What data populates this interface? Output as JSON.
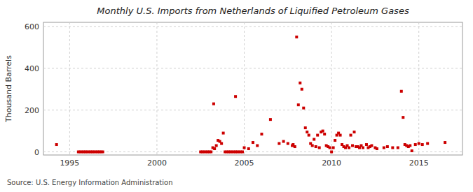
{
  "chart_data": {
    "type": "scatter",
    "title": "Monthly U.S. Imports from Netherlands of Liquified Petroleum Gases",
    "ylabel": "Thousand Barrels",
    "source": "Source: U.S. Energy Information Administration",
    "color": "#cc0000",
    "marker": "square",
    "grid": true,
    "xlim": [
      1993.5,
      2017.5
    ],
    "ylim": [
      -15,
      620
    ],
    "xticks": [
      1995,
      2000,
      2005,
      2010,
      2015
    ],
    "yticks": [
      0,
      200,
      400,
      600
    ],
    "x": [
      1994.25,
      1995.5,
      1995.6,
      1995.7,
      1995.8,
      1995.9,
      1996.0,
      1996.1,
      1996.2,
      1996.3,
      1996.4,
      1996.5,
      1996.6,
      1996.7,
      1996.8,
      1996.9,
      2002.5,
      2002.6,
      2002.7,
      2002.8,
      2002.9,
      2003.0,
      2003.1,
      2003.2,
      2003.3,
      2003.4,
      2003.5,
      2003.6,
      2003.7,
      2003.8,
      2003.9,
      2004.0,
      2004.1,
      2004.2,
      2004.3,
      2004.4,
      2004.5,
      2004.6,
      2004.7,
      2004.8,
      2004.9,
      2003.25,
      2004.5,
      2005.0,
      2005.25,
      2005.5,
      2005.75,
      2006.0,
      2006.5,
      2007.0,
      2007.25,
      2007.5,
      2007.75,
      2007.8,
      2007.9,
      2008.0,
      2008.1,
      2008.2,
      2008.3,
      2008.4,
      2008.5,
      2008.6,
      2008.7,
      2008.8,
      2008.9,
      2009.0,
      2009.1,
      2009.2,
      2009.3,
      2009.4,
      2009.5,
      2009.6,
      2009.7,
      2009.8,
      2009.9,
      2010.0,
      2010.1,
      2010.2,
      2010.3,
      2010.4,
      2010.5,
      2010.6,
      2010.7,
      2010.8,
      2010.9,
      2011.0,
      2011.1,
      2011.2,
      2011.3,
      2011.4,
      2011.5,
      2011.6,
      2011.7,
      2011.8,
      2012.0,
      2012.1,
      2012.2,
      2012.3,
      2012.5,
      2012.6,
      2013.0,
      2013.2,
      2013.5,
      2013.8,
      2014.0,
      2014.1,
      2014.2,
      2014.3,
      2014.4,
      2014.5,
      2014.6,
      2014.8,
      2015.0,
      2015.2,
      2015.5,
      2016.5
    ],
    "values": [
      35,
      0,
      0,
      0,
      0,
      0,
      0,
      0,
      0,
      0,
      0,
      0,
      0,
      0,
      0,
      0,
      0,
      0,
      0,
      0,
      0,
      0,
      0,
      20,
      15,
      30,
      55,
      50,
      40,
      90,
      0,
      0,
      0,
      0,
      0,
      0,
      0,
      0,
      0,
      0,
      0,
      230,
      265,
      20,
      15,
      45,
      30,
      85,
      155,
      40,
      50,
      40,
      30,
      35,
      25,
      550,
      225,
      330,
      300,
      210,
      115,
      95,
      80,
      40,
      30,
      60,
      25,
      80,
      20,
      95,
      100,
      85,
      30,
      25,
      20,
      0,
      20,
      55,
      80,
      90,
      80,
      35,
      25,
      20,
      30,
      20,
      80,
      30,
      95,
      25,
      25,
      20,
      30,
      20,
      35,
      20,
      25,
      30,
      20,
      15,
      20,
      25,
      20,
      20,
      290,
      165,
      35,
      30,
      25,
      30,
      5,
      35,
      40,
      35,
      40,
      45
    ]
  }
}
